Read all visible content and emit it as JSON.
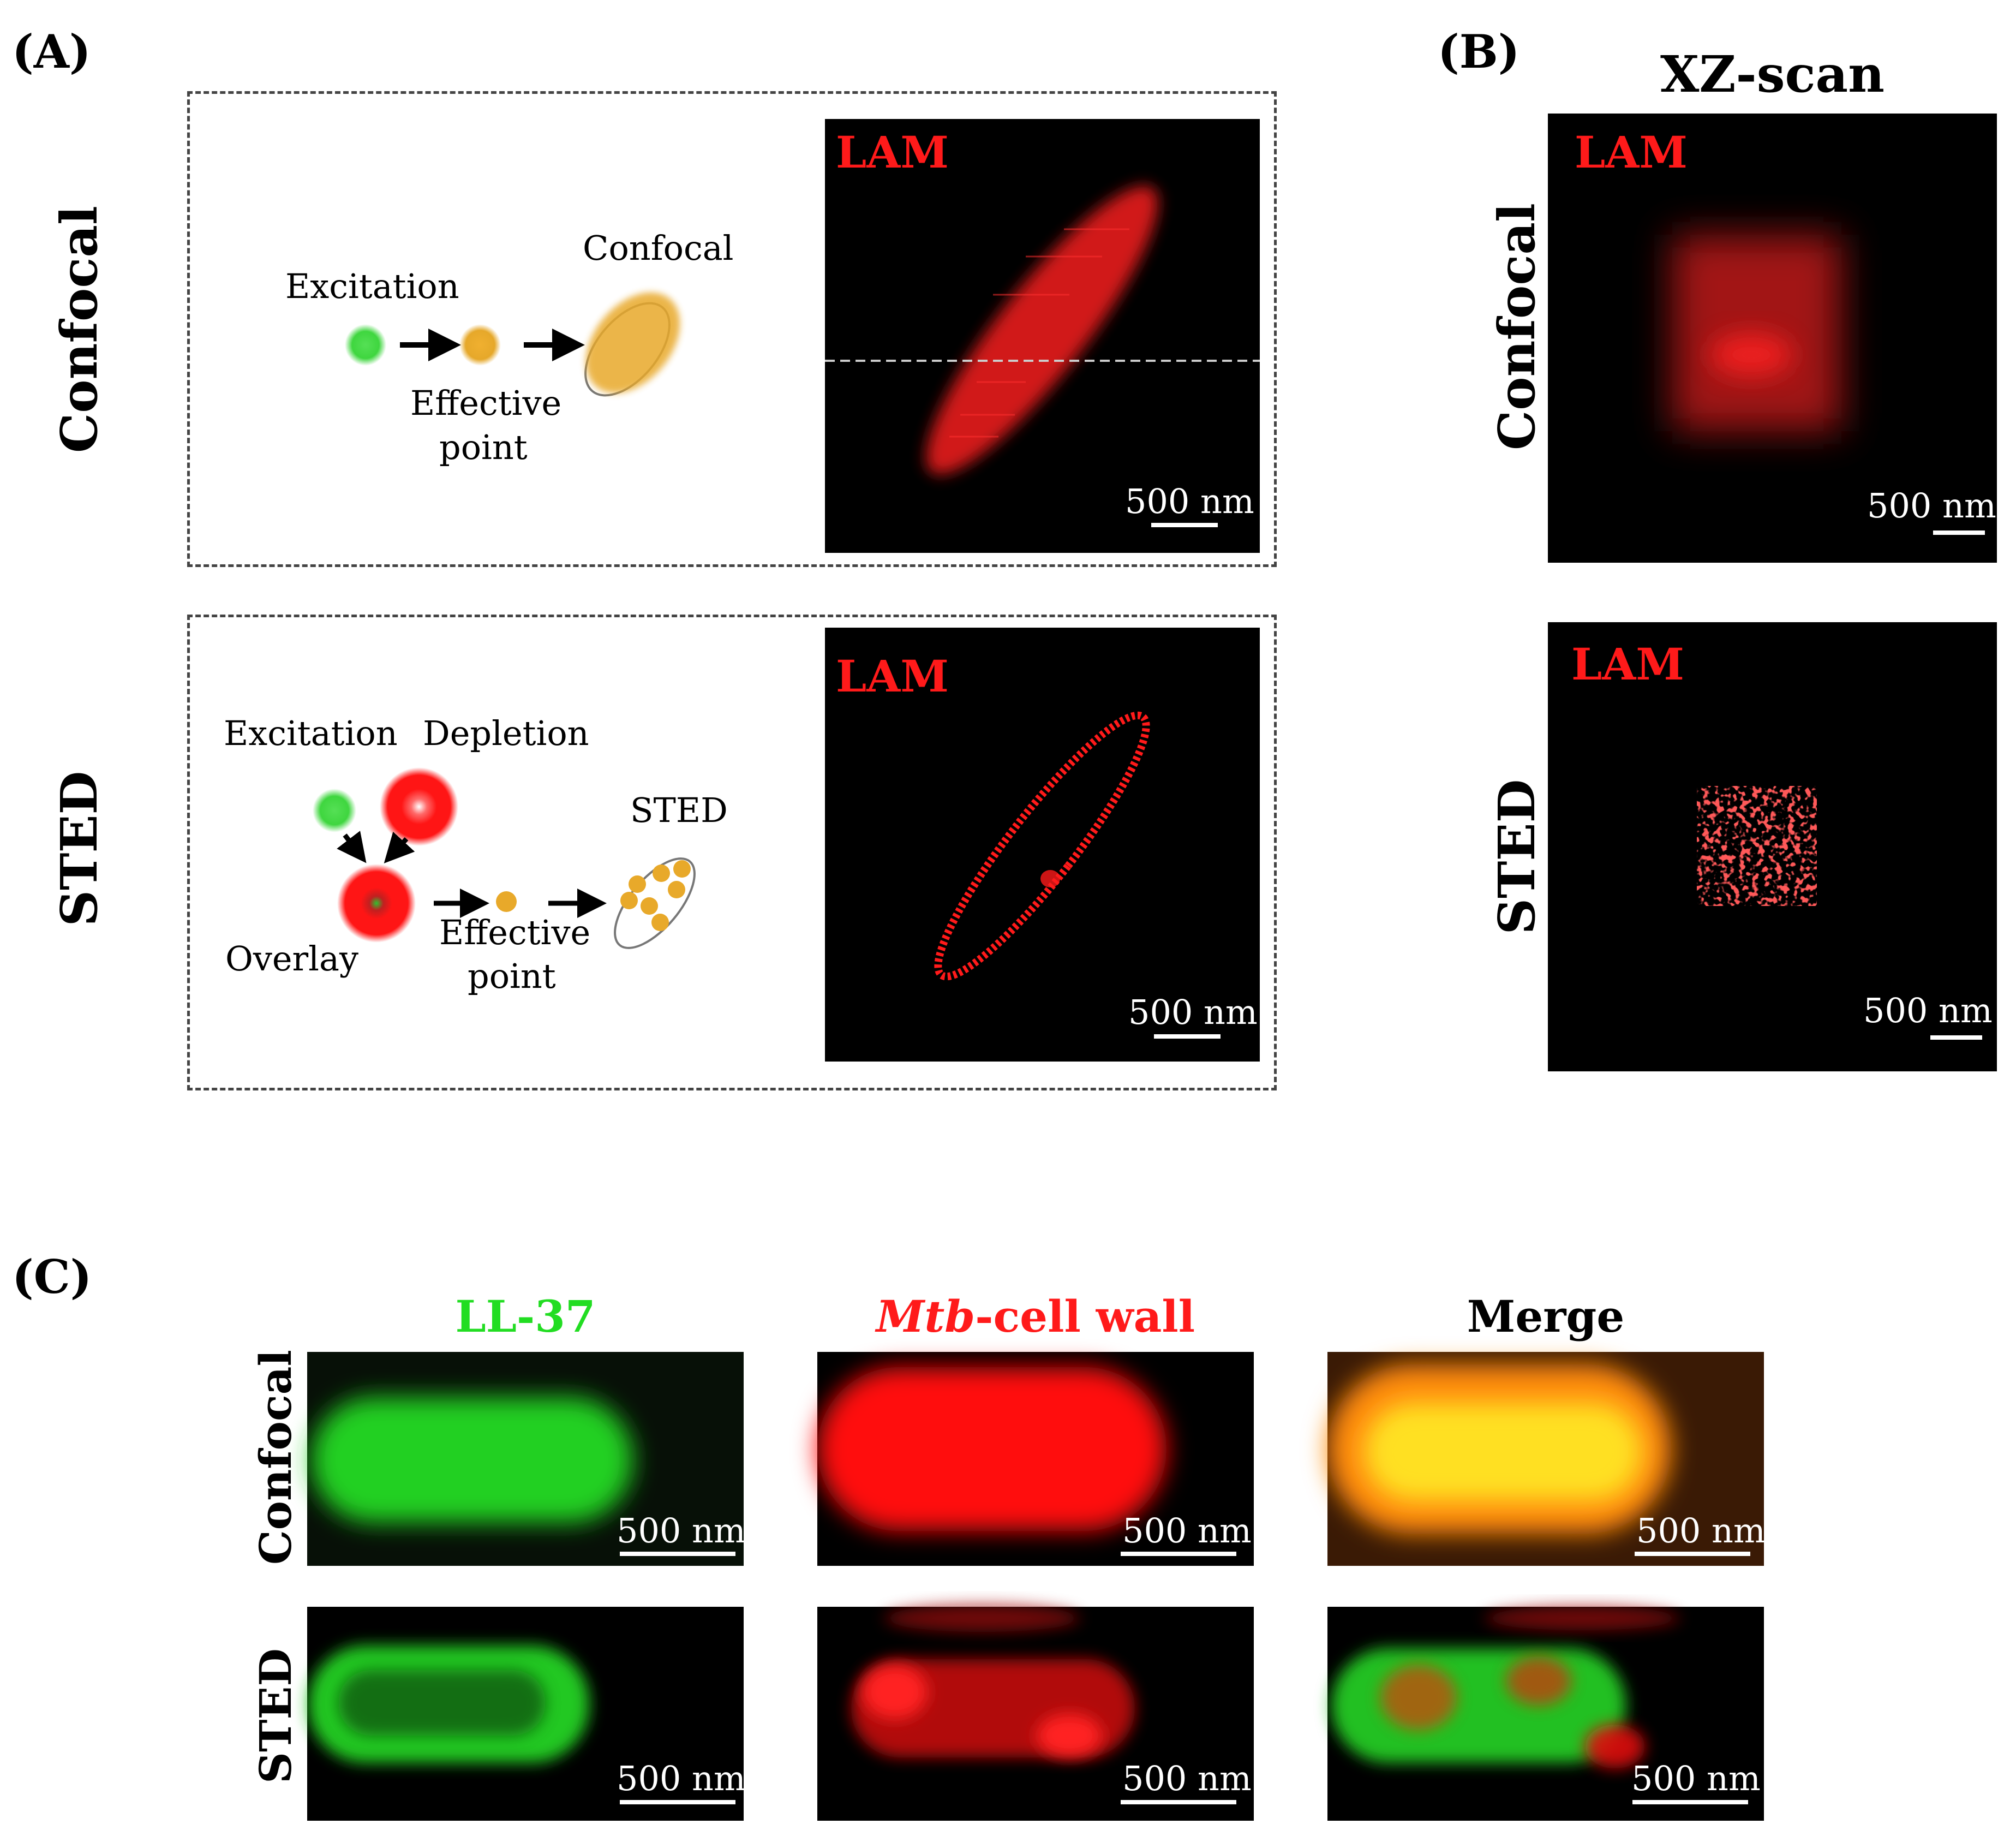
{
  "panel_labels": {
    "a": "(A)",
    "b": "(B)",
    "c": "(C)"
  },
  "panel_a": {
    "row_labels": {
      "confocal": "Confocal",
      "sted": "STED"
    },
    "confocal_diagram": {
      "excitation": "Excitation",
      "effective_line1": "Effective",
      "effective_line2": "point",
      "result": "Confocal"
    },
    "sted_diagram": {
      "excitation": "Excitation",
      "depletion": "Depletion",
      "overlay": "Overlay",
      "effective_line1": "Effective",
      "effective_line2": "point",
      "result": "STED"
    },
    "image_label": "LAM",
    "scale_bar": "500 nm"
  },
  "panel_b": {
    "title": "XZ-scan",
    "row_labels": {
      "confocal": "Confocal",
      "sted": "STED"
    },
    "image_label": "LAM",
    "scale_bar": "500 nm"
  },
  "panel_c": {
    "columns": {
      "ll37": "LL-37",
      "mtb_italic": "Mtb",
      "mtb_rest": "-cell wall",
      "merge": "Merge"
    },
    "row_labels": {
      "confocal": "Confocal",
      "sted": "STED"
    },
    "scale_bar": "500 nm"
  },
  "colors": {
    "lam_red": "#ff1a1a",
    "excitation_green": "#3ad13a",
    "effective_orange": "#e8a92a",
    "ll37_green": "#22dd22"
  }
}
